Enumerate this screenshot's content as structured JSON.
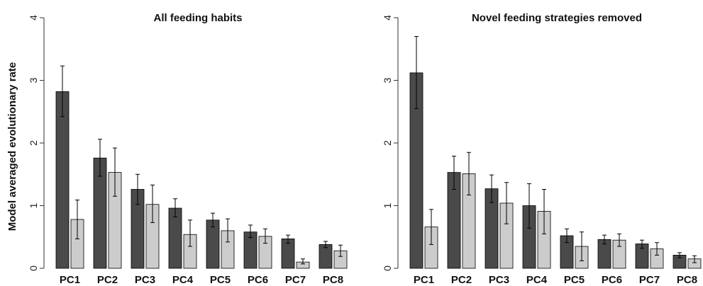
{
  "ylabel": "Model averaged evolutionary rate",
  "colors": {
    "dark": "#4a4a4a",
    "light": "#cccccc",
    "axis": "#333333"
  },
  "chart_data": [
    {
      "type": "bar",
      "title": "All feeding habits",
      "categories": [
        "PC1",
        "PC2",
        "PC3",
        "PC4",
        "PC5",
        "PC6",
        "PC7",
        "PC8"
      ],
      "yticks": [
        0,
        1,
        2,
        3,
        4
      ],
      "ylim": [
        0,
        4
      ],
      "series": [
        {
          "color": "#4a4a4a",
          "values": [
            2.82,
            1.76,
            1.26,
            0.96,
            0.77,
            0.58,
            0.47,
            0.38
          ],
          "err_low": [
            2.42,
            1.47,
            1.02,
            0.82,
            0.66,
            0.49,
            0.4,
            0.33
          ],
          "err_high": [
            3.23,
            2.06,
            1.5,
            1.11,
            0.88,
            0.69,
            0.53,
            0.43
          ]
        },
        {
          "color": "#cccccc",
          "values": [
            0.78,
            1.53,
            1.02,
            0.54,
            0.6,
            0.51,
            0.1,
            0.28
          ],
          "err_low": [
            0.47,
            1.15,
            0.73,
            0.35,
            0.42,
            0.4,
            0.07,
            0.19
          ],
          "err_high": [
            1.09,
            1.92,
            1.33,
            0.77,
            0.79,
            0.63,
            0.15,
            0.37
          ]
        }
      ]
    },
    {
      "type": "bar",
      "title": "Novel feeding strategies removed",
      "categories": [
        "PC1",
        "PC2",
        "PC3",
        "PC4",
        "PC5",
        "PC6",
        "PC7",
        "PC8"
      ],
      "yticks": [
        0,
        1,
        2,
        3,
        4
      ],
      "ylim": [
        0,
        4
      ],
      "series": [
        {
          "color": "#4a4a4a",
          "values": [
            3.12,
            1.53,
            1.27,
            1.0,
            0.52,
            0.46,
            0.39,
            0.21
          ],
          "err_low": [
            2.55,
            1.26,
            1.05,
            0.64,
            0.41,
            0.39,
            0.32,
            0.17
          ],
          "err_high": [
            3.7,
            1.79,
            1.49,
            1.35,
            0.63,
            0.53,
            0.45,
            0.25
          ]
        },
        {
          "color": "#cccccc",
          "values": [
            0.66,
            1.51,
            1.04,
            0.91,
            0.35,
            0.45,
            0.31,
            0.15
          ],
          "err_low": [
            0.38,
            1.17,
            0.71,
            0.55,
            0.12,
            0.35,
            0.21,
            0.09
          ],
          "err_high": [
            0.94,
            1.85,
            1.37,
            1.26,
            0.58,
            0.55,
            0.41,
            0.2
          ]
        }
      ]
    }
  ]
}
